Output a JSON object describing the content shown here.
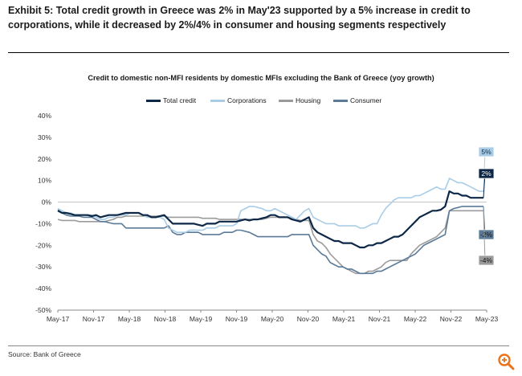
{
  "exhibit_title": "Exhibit 5: Total credit growth in Greece was 2% in May'23 supported by a 5% increase in credit to corporations, while it decreased by 2%/4% in consumer and housing segments respectively",
  "source": "Source: Bank of Greece",
  "icons": {
    "zoom": "magnifier-icon",
    "accent": "#e8731a"
  },
  "chart_data": {
    "type": "line",
    "title": "Credit to domestic non-MFI residents by domestic MFIs excluding the Bank of Greece (yoy growth)",
    "xlabel": "",
    "ylabel": "",
    "ylim": [
      -50,
      40
    ],
    "yticks": [
      "40%",
      "30%",
      "20%",
      "10%",
      "0%",
      "-10%",
      "-20%",
      "-30%",
      "-40%",
      "-50%"
    ],
    "x_ticks": [
      "May-17",
      "Nov-17",
      "May-18",
      "Nov-18",
      "May-19",
      "Nov-19",
      "May-20",
      "Nov-20",
      "May-21",
      "Nov-21",
      "May-22",
      "Nov-22",
      "May-23"
    ],
    "x_start": "May-17",
    "grid": false,
    "legend_position": "top-center",
    "series": [
      {
        "name": "Total credit",
        "color": "#0d2847",
        "values": [
          -4,
          -5,
          -5,
          -5.5,
          -6,
          -6,
          -6,
          -6,
          -6.5,
          -6,
          -7,
          -6.5,
          -6,
          -6,
          -6,
          -5.5,
          -5,
          -5,
          -5,
          -5,
          -6,
          -6,
          -7,
          -7,
          -6.5,
          -6,
          -8,
          -10,
          -10,
          -10,
          -10,
          -10,
          -10,
          -10.5,
          -11,
          -10,
          -10,
          -10,
          -9,
          -9,
          -9,
          -9,
          -9,
          -8.5,
          -8,
          -8.5,
          -8,
          -8,
          -7.5,
          -7,
          -6,
          -6,
          -7,
          -7,
          -7,
          -8,
          -8.5,
          -9,
          -8,
          -7,
          -12,
          -14,
          -15,
          -16,
          -17,
          -18,
          -18,
          -19,
          -19,
          -19,
          -20,
          -21,
          -21,
          -20,
          -20,
          -19,
          -19,
          -18,
          -17,
          -16,
          -16,
          -15,
          -13,
          -11,
          -9,
          -7,
          -6,
          -5,
          -4,
          -4,
          -3.5,
          -2,
          5,
          4,
          4,
          3,
          3,
          2,
          2,
          2,
          2
        ]
      },
      {
        "name": "Corporations",
        "color": "#a9cde6",
        "values": [
          -3,
          -4,
          -5,
          -5,
          -6,
          -6,
          -6,
          -6,
          -6,
          -7,
          -8,
          -8,
          -7,
          -7,
          -6,
          -6,
          -6,
          -5,
          -5,
          -5,
          -6,
          -7,
          -7,
          -7,
          -7,
          -8,
          -12,
          -13,
          -14,
          -14,
          -14,
          -13,
          -13,
          -13,
          -13,
          -12,
          -12,
          -12,
          -11,
          -11,
          -11,
          -11,
          -10,
          -4,
          -3,
          -2,
          -2,
          -2.5,
          -3,
          -4,
          -4,
          -3,
          -4,
          -5,
          -6,
          -7,
          -8,
          -6,
          -4,
          -3,
          -7,
          -8,
          -9,
          -10,
          -10,
          -10,
          -11,
          -11,
          -11,
          -11,
          -11,
          -12,
          -12,
          -11,
          -10,
          -10,
          -6,
          -3,
          -1,
          1,
          2,
          2,
          2,
          2,
          3,
          3,
          4,
          5,
          6,
          7,
          6,
          6,
          11,
          10,
          9,
          9,
          8,
          7,
          6,
          5,
          5
        ]
      },
      {
        "name": "Housing",
        "color": "#9b9b9b",
        "values": [
          -8,
          -8.5,
          -8.5,
          -8.5,
          -8.5,
          -9,
          -9,
          -9,
          -9,
          -9,
          -9,
          -9,
          -8.5,
          -8,
          -7,
          -7,
          -6.5,
          -6.5,
          -6.5,
          -6.5,
          -6.5,
          -6.5,
          -6.5,
          -6.5,
          -6.5,
          -6.5,
          -7,
          -7,
          -7,
          -7,
          -7,
          -7,
          -7,
          -7,
          -7.5,
          -7.5,
          -7.5,
          -7.5,
          -8,
          -8,
          -8,
          -8,
          -8,
          -8,
          -8,
          -8,
          -8,
          -8,
          -8,
          -7.5,
          -7,
          -7,
          -7,
          -7,
          -7,
          -7.5,
          -8,
          -8.5,
          -8.5,
          -8.5,
          -15,
          -18,
          -19,
          -21,
          -24,
          -26,
          -28,
          -30,
          -31,
          -32,
          -33,
          -33,
          -33,
          -32,
          -32,
          -31,
          -30,
          -28,
          -27,
          -27,
          -27,
          -27,
          -27,
          -24,
          -22,
          -20,
          -19,
          -18,
          -17,
          -16,
          -14,
          -12,
          -4,
          -4,
          -4,
          -4,
          -4,
          -4,
          -4,
          -4,
          -4
        ]
      },
      {
        "name": "Consumer",
        "color": "#5a7a98",
        "values": [
          -3.5,
          -5,
          -6,
          -6.5,
          -6.5,
          -6.5,
          -7,
          -7,
          -7,
          -8,
          -9,
          -9,
          -9.5,
          -10,
          -10,
          -10,
          -12,
          -12,
          -12,
          -12,
          -12,
          -12,
          -12,
          -12,
          -12,
          -12,
          -11,
          -14,
          -15,
          -15,
          -14,
          -14,
          -14,
          -14,
          -15,
          -15,
          -15,
          -15,
          -15,
          -14,
          -14,
          -14,
          -13,
          -13,
          -13.5,
          -14,
          -15,
          -16,
          -16,
          -16,
          -16,
          -16,
          -16,
          -16,
          -16,
          -15,
          -15,
          -15,
          -15,
          -15,
          -20,
          -22,
          -24,
          -25,
          -28,
          -29,
          -30,
          -30,
          -31,
          -31,
          -32,
          -33,
          -33,
          -33,
          -33,
          -32,
          -32,
          -31,
          -30,
          -29,
          -28,
          -27,
          -26,
          -25,
          -24,
          -22,
          -20,
          -19,
          -18,
          -17,
          -16,
          -15,
          -4,
          -3,
          -2.5,
          -2,
          -2,
          -2,
          -2,
          -2,
          -2
        ]
      }
    ],
    "end_labels": [
      {
        "text": "5%",
        "series": "Corporations",
        "value": 5
      },
      {
        "text": "2%",
        "series": "Total credit",
        "value": 2
      },
      {
        "text": "-2%",
        "series": "Consumer",
        "value": -2
      },
      {
        "text": "-4%",
        "series": "Housing",
        "value": -4
      }
    ]
  }
}
